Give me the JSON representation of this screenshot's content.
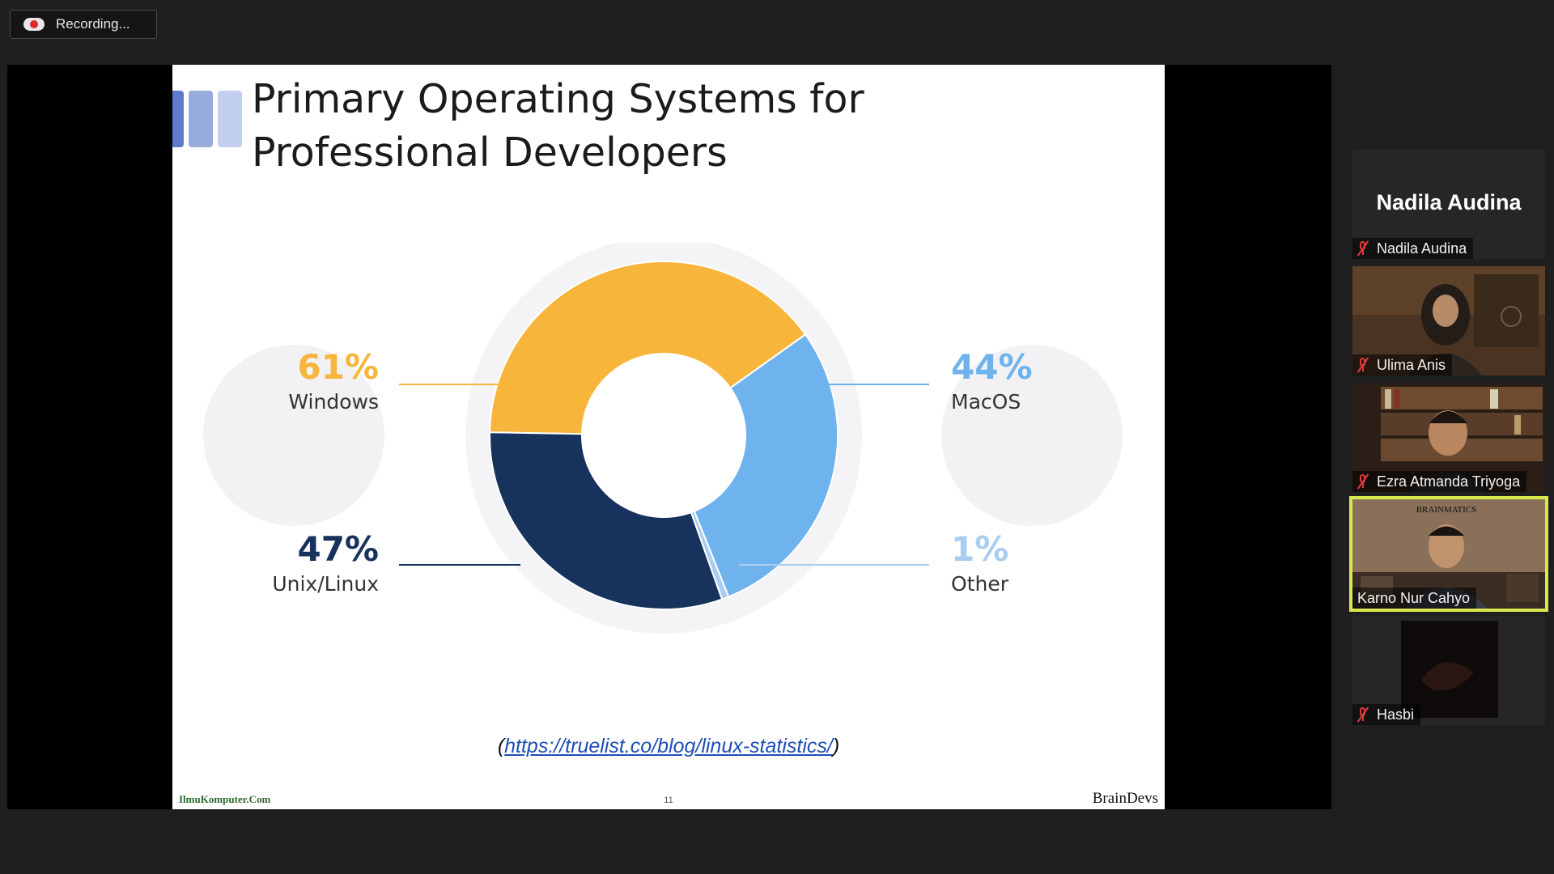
{
  "recording": {
    "label": "Recording..."
  },
  "slide": {
    "title_line1": "Primary Operating Systems for",
    "title_line2": "Professional Developers",
    "source_open": "(",
    "source_url": "https://truelist.co/blog/linux-statistics/",
    "source_close": ")",
    "footer_left": "IlmuKomputer.Com",
    "page_number": "11",
    "footer_right": "BrainDevs"
  },
  "chart_data": {
    "type": "pie",
    "series": [
      {
        "name": "Windows",
        "value": 61,
        "label": "61%",
        "color": "#f8b53b"
      },
      {
        "name": "MacOS",
        "value": 44,
        "label": "44%",
        "color": "#6fb3ee"
      },
      {
        "name": "Other",
        "value": 1,
        "label": "1%",
        "color": "#a9cdf0"
      },
      {
        "name": "Unix/Linux",
        "value": 47,
        "label": "47%",
        "color": "#17325c"
      }
    ]
  },
  "participants": [
    {
      "name": "Nadila Audina",
      "display": "Nadila Audina",
      "muted": true,
      "video": false
    },
    {
      "name": "Ulima Anis",
      "muted": true,
      "video": true
    },
    {
      "name": "Ezra Atmanda Triyoga",
      "muted": true,
      "video": true
    },
    {
      "name": "Karno Nur Cahyo",
      "muted": false,
      "video": true,
      "active_speaker": true,
      "background_text": "BRAINMATICS"
    },
    {
      "name": "Hasbi",
      "muted": true,
      "video": true
    }
  ],
  "colors": {
    "active_speaker_border": "#d8e84c",
    "mic_muted": "#e03c3c",
    "accent_link": "#1d4fb5"
  }
}
